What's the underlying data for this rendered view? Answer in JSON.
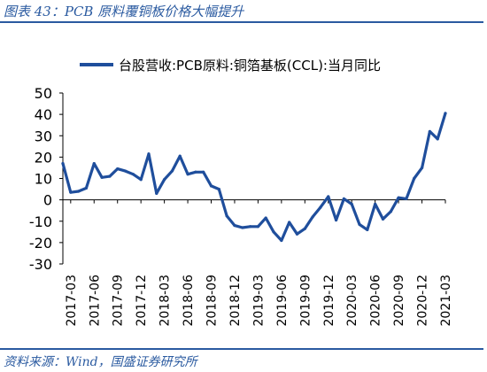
{
  "figure": {
    "title": "图表 43：PCB 原料覆铜板价格大幅提升",
    "source": "资料来源：Wind，国盛证券研究所"
  },
  "colors": {
    "accent": "#2a5aa0",
    "series": "#1f4e9c",
    "axis": "#000000"
  },
  "chart_data": {
    "type": "line",
    "title": "",
    "xlabel": "",
    "ylabel": "",
    "ylim": [
      -30,
      50
    ],
    "yticks": [
      "50",
      "40",
      "30",
      "20",
      "10",
      "0",
      "-10",
      "-20",
      "-30"
    ],
    "xtick_labels": [
      "2017-03",
      "2017-06",
      "2017-09",
      "2017-12",
      "2018-03",
      "2018-06",
      "2018-09",
      "2018-12",
      "2019-03",
      "2019-06",
      "2019-09",
      "2019-12",
      "2020-03",
      "2020-06",
      "2020-09",
      "2020-12",
      "2021-03"
    ],
    "legend_position": "top",
    "grid": false,
    "x": [
      "2017-02",
      "2017-03",
      "2017-04",
      "2017-05",
      "2017-06",
      "2017-07",
      "2017-08",
      "2017-09",
      "2017-10",
      "2017-11",
      "2017-12",
      "2018-01",
      "2018-02",
      "2018-03",
      "2018-04",
      "2018-05",
      "2018-06",
      "2018-07",
      "2018-08",
      "2018-09",
      "2018-10",
      "2018-11",
      "2018-12",
      "2019-01",
      "2019-02",
      "2019-03",
      "2019-04",
      "2019-05",
      "2019-06",
      "2019-07",
      "2019-08",
      "2019-09",
      "2019-10",
      "2019-11",
      "2019-12",
      "2020-01",
      "2020-02",
      "2020-03",
      "2020-04",
      "2020-05",
      "2020-06",
      "2020-07",
      "2020-08",
      "2020-09",
      "2020-10",
      "2020-11",
      "2020-12",
      "2021-01",
      "2021-02",
      "2021-03"
    ],
    "series": [
      {
        "name": "台股营收:PCB原料:铜箔基板(CCL):当月同比",
        "values": [
          17,
          3.5,
          4,
          5.5,
          17,
          10.5,
          11,
          14.5,
          13.5,
          12,
          9.5,
          21.5,
          3,
          9.5,
          13.5,
          20.5,
          12,
          13,
          13,
          6.5,
          5,
          -7.5,
          -12,
          -13,
          -12.5,
          -12.5,
          -8.5,
          -15,
          -19,
          -10.5,
          -16,
          -13.5,
          -8,
          -3.5,
          1.5,
          -9.5,
          0.5,
          -2,
          -11.5,
          -14,
          -2,
          -9,
          -5.5,
          1,
          0.5,
          10,
          15,
          32,
          28.5,
          40.5
        ]
      }
    ]
  }
}
